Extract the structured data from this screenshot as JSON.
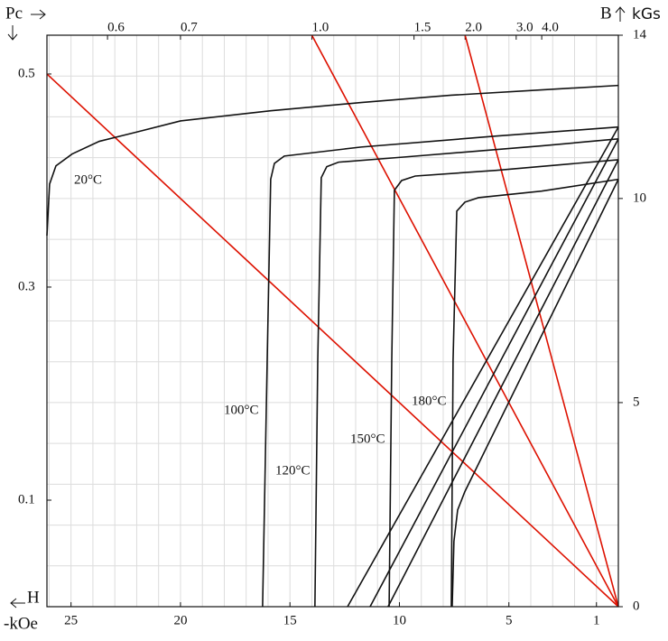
{
  "chart_data": {
    "type": "line",
    "x_label": "H",
    "x_unit": "-kOe",
    "y_label": "B",
    "y_unit": "kGs",
    "pc_label": "Pc",
    "xlim": [
      26.1,
      0
    ],
    "ylim": [
      0,
      14
    ],
    "xticks": [
      25,
      20,
      15,
      10,
      5,
      1
    ],
    "yticks": [
      0,
      5,
      10,
      14
    ],
    "grid": true,
    "minor_xticks": [
      1,
      2,
      3,
      4,
      5,
      6,
      7,
      8,
      9,
      10,
      11,
      12,
      13,
      14,
      15,
      16,
      17,
      18,
      19,
      20,
      21,
      22,
      23,
      24,
      25,
      26
    ],
    "minor_yticks": [
      1,
      2,
      3,
      4,
      5,
      6,
      7,
      8,
      9,
      10,
      11,
      12,
      13
    ],
    "pc_left_ticks": [
      0.5,
      0.3,
      0.1
    ],
    "pc_top_ticks": [
      0.6,
      0.7,
      {
        "value": 1,
        "label": "1.0"
      },
      1.5,
      {
        "value": 2,
        "label": "2.0"
      },
      {
        "value": 3,
        "label": "3.0"
      },
      {
        "value": 4,
        "label": "4.0"
      }
    ],
    "load_lines": {
      "color": "#dd1100",
      "values": [
        0.5,
        1,
        2
      ]
    },
    "series": [
      {
        "name": "20°C",
        "color": "#111111",
        "x": [
          26.1,
          25.98,
          25.69,
          24.95,
          23.71,
          22.06,
          20.0,
          15.88,
          11.75,
          7.63,
          3.51,
          0
        ],
        "values": [
          9.09,
          10.35,
          10.8,
          11.09,
          11.4,
          11.62,
          11.9,
          12.15,
          12.35,
          12.53,
          12.66,
          12.77
        ]
      },
      {
        "name": "100°C",
        "color": "#111111",
        "x": [
          16.25,
          16.04,
          15.88,
          15.71,
          15.26,
          11.75,
          5.57,
          0
        ],
        "values": [
          0,
          6.03,
          10.47,
          10.86,
          11.04,
          11.26,
          11.53,
          11.75
        ]
      },
      {
        "name": "120°C",
        "color": "#111111",
        "x": [
          13.86,
          13.73,
          13.57,
          13.32,
          12.78,
          9.69,
          3.51,
          0
        ],
        "values": [
          0,
          6.03,
          10.51,
          10.78,
          10.89,
          11.02,
          11.29,
          11.46
        ]
      },
      {
        "name": "150°C",
        "color": "#111111",
        "x": [
          10.47,
          10.35,
          10.23,
          9.9,
          9.28,
          5.57,
          0
        ],
        "values": [
          0,
          6.03,
          10.2,
          10.44,
          10.55,
          10.69,
          10.95
        ]
      },
      {
        "name": "180°C",
        "color": "#111111",
        "x": [
          7.63,
          7.55,
          7.38,
          7.01,
          6.39,
          3.51,
          0
        ],
        "values": [
          0,
          6.03,
          9.69,
          9.91,
          10.02,
          10.18,
          10.47
        ]
      }
    ],
    "normal_curves": {
      "color": "#111111",
      "lines": [
        {
          "x": [
            12.37,
            0
          ],
          "values": [
            0,
            11.75
          ]
        },
        {
          "x": [
            11.34,
            0
          ],
          "values": [
            0,
            11.46
          ]
        },
        {
          "x": [
            10.52,
            0
          ],
          "values": [
            0,
            10.95
          ]
        },
        {
          "x": [
            7.59,
            7.51,
            7.34,
            7.01,
            0
          ],
          "values": [
            0,
            1.6,
            2.37,
            2.82,
            10.47
          ]
        }
      ]
    }
  }
}
